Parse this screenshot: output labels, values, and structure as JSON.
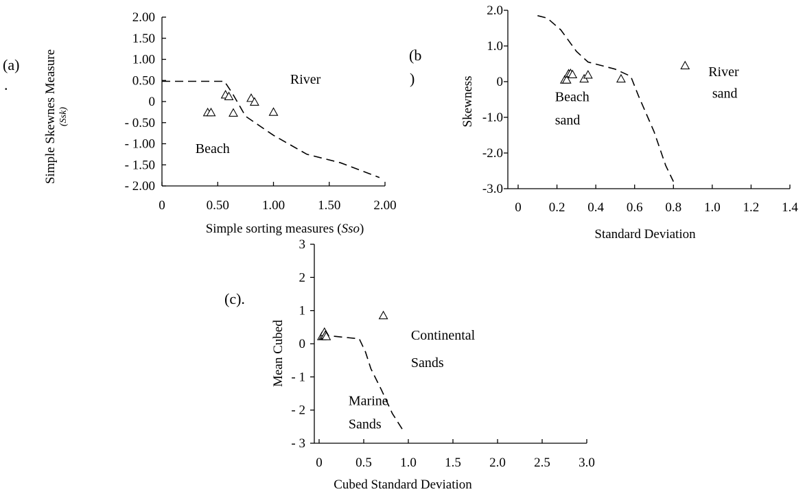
{
  "chart_data": [
    {
      "id": "a",
      "type": "scatter",
      "panel_label": "(a)",
      "panel_label_dot": ".",
      "xlabel": "Simple sorting measures (",
      "xlabel_italic": "Sso",
      "xlabel_close": ")",
      "ylabel": "Simple Skewnes Measure",
      "ylabel_sub": "(Ssk)",
      "xlim": [
        0,
        2
      ],
      "ylim": [
        -2,
        2
      ],
      "x_ticks": [
        {
          "v": 0,
          "t": "0"
        },
        {
          "v": 0.5,
          "t": "0.50"
        },
        {
          "v": 1,
          "t": "1.00"
        },
        {
          "v": 1.5,
          "t": "1.50"
        },
        {
          "v": 2,
          "t": "2.00"
        }
      ],
      "y_ticks": [
        {
          "v": 2,
          "t": "2.00"
        },
        {
          "v": 1.5,
          "t": "1.50"
        },
        {
          "v": 1,
          "t": "1.00"
        },
        {
          "v": 0.5,
          "t": "0.50"
        },
        {
          "v": 0,
          "t": "0"
        },
        {
          "v": -0.5,
          "t": "- 0.50"
        },
        {
          "v": -1,
          "t": "- 1.00"
        },
        {
          "v": -1.5,
          "t": "- 1.50"
        },
        {
          "v": -2,
          "t": "- 2.00"
        }
      ],
      "points": [
        {
          "x": 0.41,
          "y": -0.26
        },
        {
          "x": 0.44,
          "y": -0.26
        },
        {
          "x": 0.57,
          "y": 0.16
        },
        {
          "x": 0.6,
          "y": 0.12
        },
        {
          "x": 0.64,
          "y": -0.27
        },
        {
          "x": 0.8,
          "y": 0.08
        },
        {
          "x": 0.83,
          "y": -0.01
        },
        {
          "x": 1.0,
          "y": -0.25
        }
      ],
      "boundary": [
        {
          "x": 0,
          "y": 0.48
        },
        {
          "x": 0.56,
          "y": 0.48
        },
        {
          "x": 0.63,
          "y": 0.2
        },
        {
          "x": 0.75,
          "y": -0.35
        },
        {
          "x": 1.0,
          "y": -0.8
        },
        {
          "x": 1.3,
          "y": -1.25
        },
        {
          "x": 1.6,
          "y": -1.45
        },
        {
          "x": 1.95,
          "y": -1.8
        }
      ],
      "regions": [
        {
          "text": "River",
          "x": 1.15,
          "y": 0.42
        },
        {
          "text": "Beach",
          "x": 0.3,
          "y": -1.22
        }
      ]
    },
    {
      "id": "b",
      "type": "scatter",
      "panel_label": "(b",
      "panel_label_tail": ")",
      "xlabel": "Standard Deviation",
      "ylabel": "Skewness",
      "xlim": [
        0,
        1.4
      ],
      "ylim": [
        -3,
        2
      ],
      "x_ticks": [
        {
          "v": 0,
          "t": "0"
        },
        {
          "v": 0.2,
          "t": "0.2"
        },
        {
          "v": 0.4,
          "t": "0.4"
        },
        {
          "v": 0.6,
          "t": "0.6"
        },
        {
          "v": 0.8,
          "t": "0.8"
        },
        {
          "v": 1.0,
          "t": "1.0"
        },
        {
          "v": 1.2,
          "t": "1.2"
        },
        {
          "v": 1.4,
          "t": "1.4"
        }
      ],
      "y_ticks": [
        {
          "v": 2,
          "t": "2.0"
        },
        {
          "v": 1,
          "t": "1.0"
        },
        {
          "v": 0,
          "t": "0"
        },
        {
          "v": -1,
          "t": "-1.0"
        },
        {
          "v": -2,
          "t": "-2.0"
        },
        {
          "v": -3,
          "t": "-3.0"
        }
      ],
      "points": [
        {
          "x": 0.24,
          "y": 0.05
        },
        {
          "x": 0.25,
          "y": 0.05
        },
        {
          "x": 0.26,
          "y": 0.22
        },
        {
          "x": 0.27,
          "y": 0.23
        },
        {
          "x": 0.28,
          "y": 0.2
        },
        {
          "x": 0.34,
          "y": 0.08
        },
        {
          "x": 0.36,
          "y": 0.19
        },
        {
          "x": 0.53,
          "y": 0.08
        },
        {
          "x": 0.86,
          "y": 0.45
        }
      ],
      "boundary": [
        {
          "x": 0.1,
          "y": 1.85
        },
        {
          "x": 0.15,
          "y": 1.78
        },
        {
          "x": 0.22,
          "y": 1.45
        },
        {
          "x": 0.3,
          "y": 0.85
        },
        {
          "x": 0.36,
          "y": 0.55
        },
        {
          "x": 0.5,
          "y": 0.35
        },
        {
          "x": 0.58,
          "y": 0.15
        },
        {
          "x": 0.62,
          "y": -0.4
        },
        {
          "x": 0.7,
          "y": -1.4
        },
        {
          "x": 0.76,
          "y": -2.35
        },
        {
          "x": 0.8,
          "y": -2.8
        }
      ],
      "regions": [
        {
          "text": "River",
          "x": 0.98,
          "y": 0.15
        },
        {
          "text": "sand",
          "x": 1.0,
          "y": -0.45
        },
        {
          "text": "Beach",
          "x": 0.19,
          "y": -0.55
        },
        {
          "text": "sand",
          "x": 0.19,
          "y": -1.2
        }
      ]
    },
    {
      "id": "c",
      "type": "scatter",
      "panel_label": "(c).",
      "xlabel": "Cubed Standard Deviation",
      "ylabel": "Mean Cubed",
      "xlim": [
        0,
        3
      ],
      "ylim": [
        -3,
        3
      ],
      "x_ticks": [
        {
          "v": 0,
          "t": "0"
        },
        {
          "v": 0.5,
          "t": "0.5"
        },
        {
          "v": 1.0,
          "t": "1.0"
        },
        {
          "v": 1.5,
          "t": "1.5"
        },
        {
          "v": 2.0,
          "t": "2.0"
        },
        {
          "v": 2.5,
          "t": "2.5"
        },
        {
          "v": 3.0,
          "t": "3.0"
        }
      ],
      "y_ticks": [
        {
          "v": 3,
          "t": "3"
        },
        {
          "v": 2,
          "t": "2"
        },
        {
          "v": 1,
          "t": "1"
        },
        {
          "v": 0,
          "t": "0"
        },
        {
          "v": -1,
          "t": "- 1"
        },
        {
          "v": -2,
          "t": "- 2"
        },
        {
          "v": -3,
          "t": "- 3"
        }
      ],
      "points": [
        {
          "x": 0.03,
          "y": 0.22
        },
        {
          "x": 0.05,
          "y": 0.24
        },
        {
          "x": 0.06,
          "y": 0.35
        },
        {
          "x": 0.07,
          "y": 0.26
        },
        {
          "x": 0.08,
          "y": 0.22
        },
        {
          "x": 0.72,
          "y": 0.85
        }
      ],
      "boundary": [
        {
          "x": 0.02,
          "y": 0.25
        },
        {
          "x": 0.15,
          "y": 0.23
        },
        {
          "x": 0.45,
          "y": 0.15
        },
        {
          "x": 0.52,
          "y": -0.25
        },
        {
          "x": 0.58,
          "y": -0.75
        },
        {
          "x": 0.7,
          "y": -1.4
        },
        {
          "x": 0.82,
          "y": -2.1
        },
        {
          "x": 0.95,
          "y": -2.65
        }
      ],
      "regions": [
        {
          "text": "Continental",
          "x": 1.03,
          "y": 0.12
        },
        {
          "text": "Sands",
          "x": 1.03,
          "y": -0.7
        },
        {
          "text": "Marine",
          "x": 0.33,
          "y": -1.85
        },
        {
          "text": "Sands",
          "x": 0.33,
          "y": -2.55
        }
      ]
    }
  ]
}
